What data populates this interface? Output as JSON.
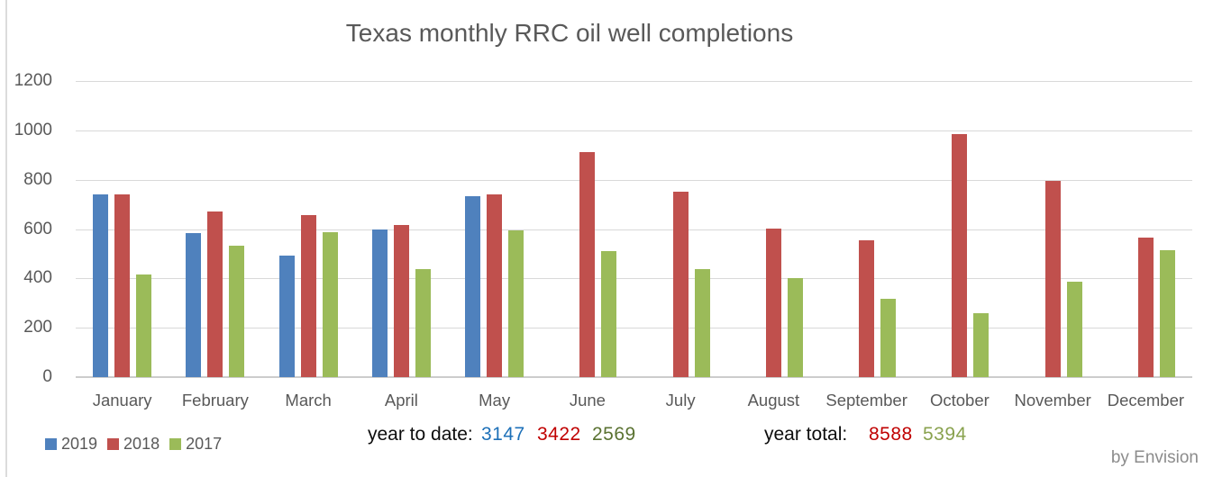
{
  "chart_data": {
    "type": "bar",
    "title": "Texas monthly RRC oil well completions",
    "xlabel": "",
    "ylabel": "",
    "ylim": [
      0,
      1200
    ],
    "ytick_interval": 200,
    "grid": true,
    "legend_position": "bottom-left",
    "categories": [
      "January",
      "February",
      "March",
      "April",
      "May",
      "June",
      "July",
      "August",
      "September",
      "October",
      "November",
      "December"
    ],
    "series": [
      {
        "name": "2019",
        "color": "#4F81BD",
        "values": [
          740,
          585,
          492,
          597,
          733,
          null,
          null,
          null,
          null,
          null,
          null,
          null
        ]
      },
      {
        "name": "2018",
        "color": "#C0504D",
        "values": [
          740,
          670,
          655,
          617,
          740,
          912,
          752,
          601,
          555,
          985,
          796,
          565
        ]
      },
      {
        "name": "2017",
        "color": "#9BBB59",
        "values": [
          417,
          532,
          587,
          437,
          596,
          512,
          437,
          401,
          317,
          259,
          385,
          514
        ]
      }
    ],
    "year_to_date": {
      "2019": 3147,
      "2018": 3422,
      "2017": 2569
    },
    "year_total": {
      "2018": 8588,
      "2017": 5394
    }
  },
  "legend": {
    "items": [
      {
        "label": "2019",
        "color": "#4F81BD"
      },
      {
        "label": "2018",
        "color": "#C0504D"
      },
      {
        "label": "2017",
        "color": "#9BBB59"
      }
    ]
  },
  "footer": {
    "ytd_label": "year to date:",
    "ytd_values": [
      {
        "text": "3147",
        "color": "#1D70B8"
      },
      {
        "text": "3422",
        "color": "#C00000"
      },
      {
        "text": "2569",
        "color": "#5A7231"
      }
    ],
    "total_label": "year total:",
    "total_values": [
      {
        "text": "8588",
        "color": "#C00000"
      },
      {
        "text": "5394",
        "color": "#89A24E"
      }
    ]
  },
  "credit": "by Envision",
  "colors": {
    "title_text": "#595959",
    "axis_text": "#595959",
    "gridline": "#D9D9D9",
    "axis_line": "#CCCCCC",
    "background": "#FFFFFF"
  }
}
